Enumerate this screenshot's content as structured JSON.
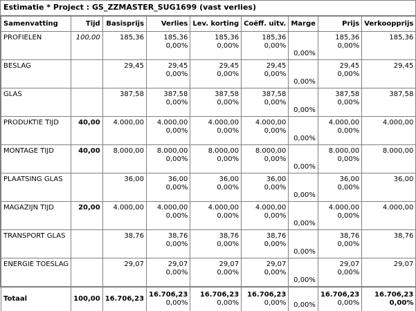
{
  "window": {
    "title": "Estimatie * Project : GS_ZZMASTER_SUG1699 (vast verlies)"
  },
  "columns": [
    "Samenvatting",
    "Tijd",
    "Basisprijs",
    "Verlies",
    "Lev. korting",
    "Coëff. uitv.",
    "Marge",
    "Prijs",
    "Verkoopprijs"
  ],
  "rows": [
    {
      "label": "PROFIELEN",
      "tijd": "100,00",
      "tijd_italic": true,
      "basis": "185,36",
      "verlies": "185,36",
      "verlies_pct": "0,00%",
      "lev": "185,36",
      "lev_pct": "0,00%",
      "coeff": "185,36",
      "coeff_pct": "0,00%",
      "marge": "0,00%",
      "prijs": "185,36",
      "prijs_pct": "0,00%",
      "verkoop": "185,36"
    },
    {
      "label": "BESLAG",
      "tijd": "",
      "basis": "29,45",
      "verlies": "29,45",
      "verlies_pct": "0,00%",
      "lev": "29,45",
      "lev_pct": "0,00%",
      "coeff": "29,45",
      "coeff_pct": "0,00%",
      "marge": "0,00%",
      "prijs": "29,45",
      "prijs_pct": "0,00%",
      "verkoop": "29,45"
    },
    {
      "label": "GLAS",
      "tijd": "",
      "basis": "387,58",
      "verlies": "387,58",
      "verlies_pct": "0,00%",
      "lev": "387,58",
      "lev_pct": "0,00%",
      "coeff": "387,58",
      "coeff_pct": "0,00%",
      "marge": "0,00%",
      "prijs": "387,58",
      "prijs_pct": "0,00%",
      "verkoop": "387,58"
    },
    {
      "label": "PRODUKTIE TIJD",
      "tijd": "40,00",
      "basis": "4.000,00",
      "verlies": "4.000,00",
      "verlies_pct": "0,00%",
      "lev": "4.000,00",
      "lev_pct": "0,00%",
      "coeff": "4.000,00",
      "coeff_pct": "0,00%",
      "marge": "0,00%",
      "prijs": "4.000,00",
      "prijs_pct": "0,00%",
      "verkoop": "4.000,00"
    },
    {
      "label": "MONTAGE TIJD",
      "tijd": "40,00",
      "basis": "8.000,00",
      "verlies": "8.000,00",
      "verlies_pct": "0,00%",
      "lev": "8.000,00",
      "lev_pct": "0,00%",
      "coeff": "8.000,00",
      "coeff_pct": "0,00%",
      "marge": "0,00%",
      "prijs": "8.000,00",
      "prijs_pct": "0,00%",
      "verkoop": "8.000,00"
    },
    {
      "label": "PLAATSING GLAS",
      "tijd": "",
      "basis": "36,00",
      "verlies": "36,00",
      "verlies_pct": "0,00%",
      "lev": "36,00",
      "lev_pct": "0,00%",
      "coeff": "36,00",
      "coeff_pct": "0,00%",
      "marge": "0,00%",
      "prijs": "36,00",
      "prijs_pct": "0,00%",
      "verkoop": "36,00"
    },
    {
      "label": "MAGAZIJN TIJD",
      "tijd": "20,00",
      "basis": "4.000,00",
      "verlies": "4.000,00",
      "verlies_pct": "0,00%",
      "lev": "4.000,00",
      "lev_pct": "0,00%",
      "coeff": "4.000,00",
      "coeff_pct": "0,00%",
      "marge": "0,00%",
      "prijs": "4.000,00",
      "prijs_pct": "0,00%",
      "verkoop": "4.000,00"
    },
    {
      "label": "TRANSPORT GLAS",
      "tijd": "",
      "basis": "38,76",
      "verlies": "38,76",
      "verlies_pct": "0,00%",
      "lev": "38,76",
      "lev_pct": "0,00%",
      "coeff": "38,76",
      "coeff_pct": "0,00%",
      "marge": "0,00%",
      "prijs": "38,76",
      "prijs_pct": "0,00%",
      "verkoop": "38,76"
    },
    {
      "label": "ENERGIE TOESLAG",
      "tijd": "",
      "basis": "29,07",
      "verlies": "29,07",
      "verlies_pct": "0,00%",
      "lev": "29,07",
      "lev_pct": "0,00%",
      "coeff": "29,07",
      "coeff_pct": "0,00%",
      "marge": "0,00%",
      "prijs": "29,07",
      "prijs_pct": "0,00%",
      "verkoop": "29,07"
    }
  ],
  "total": {
    "label": "Totaal",
    "tijd": "100,00",
    "basis": "16.706,23",
    "verlies": "16.706,23",
    "verlies_pct": "0,00%",
    "lev": "16.706,23",
    "lev_pct": "0,00%",
    "coeff": "16.706,23",
    "coeff_pct": "0,00%",
    "marge": "0,00%",
    "prijs": "16.706,23",
    "prijs_pct": "0,00%",
    "verkoop": "16.706,23",
    "verkoop_pct": "0,00%"
  }
}
